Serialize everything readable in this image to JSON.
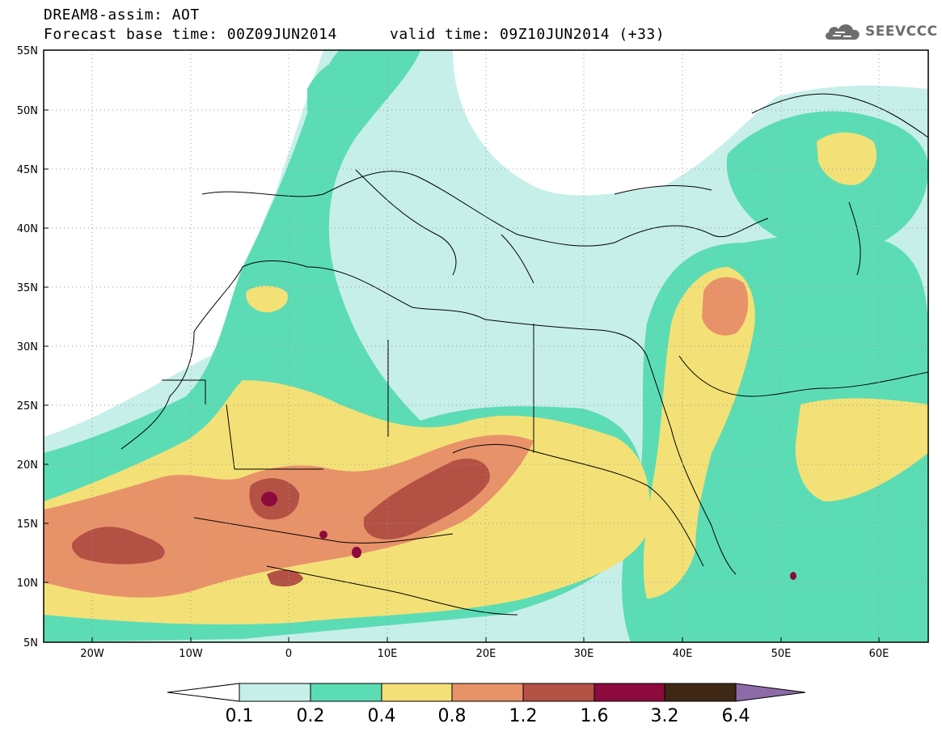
{
  "title": {
    "model_line": "DREAM8-assim: AOT",
    "base_time_line": "Forecast base time: 00Z09JUN2014",
    "valid_time_line": "valid time: 09Z10JUN2014 (+33)"
  },
  "logo": {
    "text": "SEEVCCC",
    "icon": "cloud-icon"
  },
  "axes": {
    "lat_labels": [
      "55N",
      "50N",
      "45N",
      "40N",
      "35N",
      "30N",
      "25N",
      "20N",
      "15N",
      "10N",
      "5N"
    ],
    "lon_labels": [
      "20W",
      "10W",
      "0",
      "10E",
      "20E",
      "30E",
      "40E",
      "50E",
      "60E"
    ]
  },
  "colorbar": {
    "labels": [
      "0.1",
      "0.2",
      "0.4",
      "0.8",
      "1.2",
      "1.6",
      "3.2",
      "6.4"
    ],
    "colors": [
      "#ffffff",
      "#c6efe9",
      "#5cdcb4",
      "#f3e177",
      "#e8926a",
      "#b45145",
      "#8c0a3c",
      "#3e2714",
      "#8e6aa8"
    ]
  }
}
